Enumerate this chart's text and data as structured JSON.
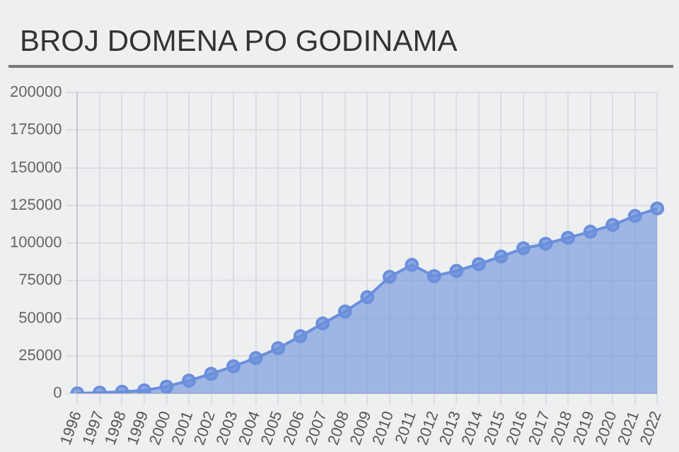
{
  "chart_data": {
    "type": "area",
    "title": "BROJ DOMENA PO GODINAMA",
    "categories": [
      "1996",
      "1997",
      "1998",
      "1999",
      "2000",
      "2001",
      "2002",
      "2003",
      "2004",
      "2005",
      "2006",
      "2007",
      "2008",
      "2009",
      "2010",
      "2011",
      "2012",
      "2013",
      "2014",
      "2015",
      "2016",
      "2017",
      "2018",
      "2019",
      "2020",
      "2021",
      "2022"
    ],
    "series": [
      {
        "color": "#6a8fdc",
        "values": [
          0,
          500,
          1000,
          2000,
          4500,
          8500,
          13000,
          18000,
          23500,
          30000,
          38000,
          46500,
          54500,
          64000,
          77500,
          85500,
          78000,
          81500,
          86000,
          91000,
          96500,
          99500,
          103500,
          107500,
          112000,
          118000,
          123000
        ]
      }
    ],
    "ylim": [
      0,
      200000
    ],
    "yticks": [
      0,
      25000,
      50000,
      75000,
      100000,
      125000,
      150000,
      175000,
      200000
    ],
    "grid": true,
    "marker": "circle",
    "legend": false
  }
}
